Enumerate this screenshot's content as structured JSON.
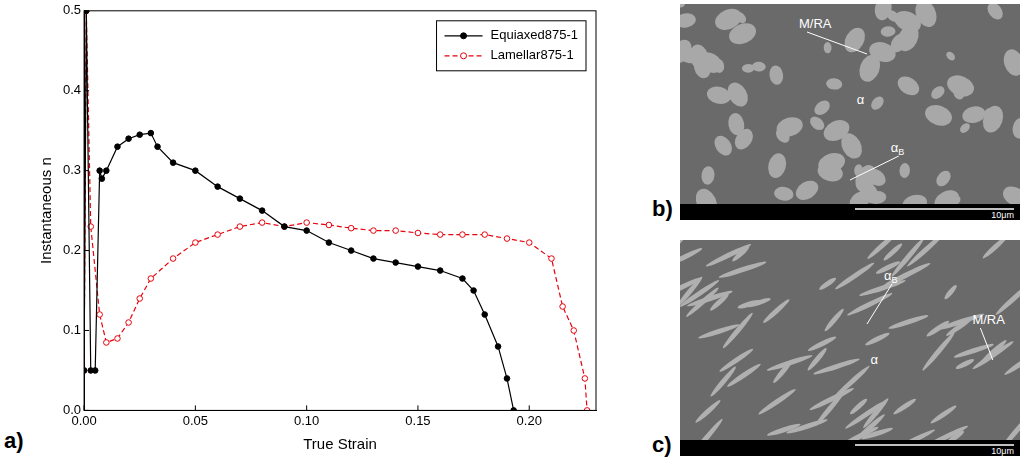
{
  "chart_data": {
    "type": "line",
    "x_label": "True Strain",
    "y_label": "Instantaneous n",
    "xlim": [
      0,
      0.23
    ],
    "xticks": [
      {
        "value": 0,
        "label": "0.00"
      },
      {
        "value": 0.05,
        "label": "0.05"
      },
      {
        "value": 0.1,
        "label": "0.10"
      },
      {
        "value": 0.15,
        "label": "0.15"
      },
      {
        "value": 0.2,
        "label": "0.20"
      }
    ],
    "ylim": [
      0,
      0.5
    ],
    "yticks": [
      {
        "value": 0,
        "label": "0.0"
      },
      0.1,
      0.2,
      0.3,
      0.4,
      0.5
    ],
    "grid": false,
    "legend": "upper right",
    "series": [
      {
        "name": "Equiaxed875-1",
        "color": "#000000",
        "marker": "circle",
        "line_style": "solid",
        "x": [
          0,
          0.001,
          0.003,
          0.005,
          0.007,
          0.008,
          0.01,
          0.015,
          0.02,
          0.025,
          0.03,
          0.033,
          0.04,
          0.05,
          0.06,
          0.07,
          0.08,
          0.09,
          0.1,
          0.11,
          0.12,
          0.13,
          0.14,
          0.15,
          0.16,
          0.17,
          0.175,
          0.18,
          0.186,
          0.19,
          0.193
        ],
        "values": [
          0.05,
          0.5,
          0.05,
          0.05,
          0.3,
          0.29,
          0.3,
          0.33,
          0.34,
          0.345,
          0.347,
          0.33,
          0.31,
          0.3,
          0.28,
          0.265,
          0.25,
          0.23,
          0.225,
          0.21,
          0.2,
          0.19,
          0.185,
          0.18,
          0.175,
          0.165,
          0.15,
          0.12,
          0.08,
          0.04,
          0.0
        ]
      },
      {
        "name": "Lamellar875-1",
        "color": "#e8000b",
        "marker": "open_circle",
        "line_style": "dashed",
        "x": [
          0,
          0.001,
          0.003,
          0.007,
          0.01,
          0.015,
          0.02,
          0.025,
          0.03,
          0.04,
          0.05,
          0.06,
          0.07,
          0.08,
          0.09,
          0.1,
          0.11,
          0.12,
          0.13,
          0.14,
          0.15,
          0.16,
          0.17,
          0.18,
          0.19,
          0.2,
          0.21,
          0.215,
          0.22,
          0.225,
          0.226
        ],
        "values": [
          0.05,
          0.5,
          0.23,
          0.12,
          0.085,
          0.09,
          0.11,
          0.14,
          0.165,
          0.19,
          0.21,
          0.22,
          0.23,
          0.235,
          0.23,
          0.235,
          0.232,
          0.228,
          0.225,
          0.225,
          0.222,
          0.22,
          0.22,
          0.22,
          0.215,
          0.21,
          0.19,
          0.13,
          0.1,
          0.04,
          0.0
        ]
      }
    ]
  },
  "figure_labels": [
    "a)",
    "b)",
    "c)"
  ],
  "micrographs": [
    {
      "style": "equiaxed",
      "annotations": [
        "M/RA",
        "α",
        {
          "text": "α",
          "sub": "B"
        }
      ],
      "scale_bar": "10μm"
    },
    {
      "style": "lamellar",
      "annotations": [
        {
          "text": "α",
          "sub": "B"
        },
        "M/RA",
        "α"
      ],
      "scale_bar": "10μm"
    }
  ]
}
